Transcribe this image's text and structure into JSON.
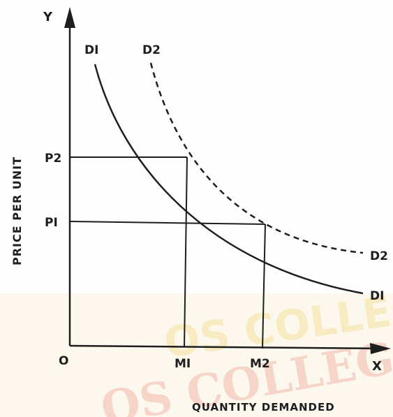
{
  "diagram": {
    "axis_y_letter": "Y",
    "axis_x_letter": "X",
    "origin_label": "O",
    "y_axis_title": "PRICE PER UNIT",
    "x_axis_title": "QUANTITY DEMANDED",
    "price_labels": [
      "P2",
      "PI"
    ],
    "quantity_labels": [
      "MI",
      "M2"
    ],
    "curves": [
      {
        "label_top": "DI",
        "label_end": "DI",
        "style": "solid"
      },
      {
        "label_top": "D2",
        "label_end": "D2",
        "style": "dashed"
      }
    ],
    "watermark": "OS COLLEG",
    "line_color": "#1e1e1e",
    "watermark_color": "#f3b7aa"
  }
}
